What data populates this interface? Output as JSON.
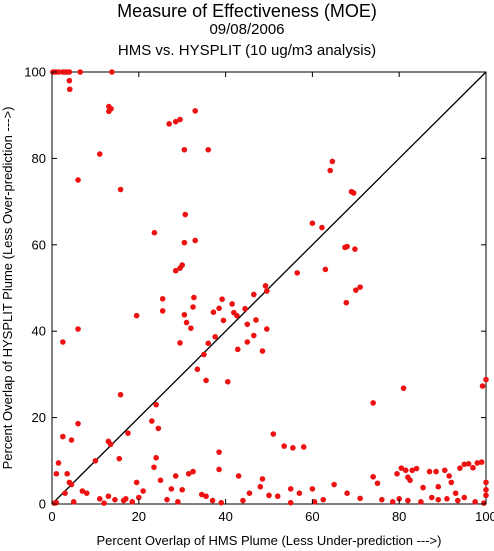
{
  "chart_data": {
    "type": "scatter",
    "title": "Measure of Effectiveness (MOE)",
    "date": "09/08/2006",
    "subtitle": "HMS vs. HYSPLIT  (10 ug/m3 analysis)",
    "xlabel": "Percent Overlap of HMS Plume (Less Under-prediction --->)",
    "ylabel": "Percent Overlap of HYSPLIT Plume (Less Over-prediction --->)",
    "xlim": [
      0,
      100
    ],
    "ylim": [
      0,
      100
    ],
    "xticks": [
      "0",
      "20",
      "40",
      "60",
      "80",
      "100"
    ],
    "yticks": [
      "0",
      "20",
      "40",
      "60",
      "80",
      "100"
    ],
    "grid": false,
    "legend": "none",
    "reference_line": {
      "x": [
        0,
        100
      ],
      "y": [
        0,
        100
      ]
    },
    "point_color": "#ee1111",
    "series": [
      {
        "points": [
          [
            0.2,
            100
          ],
          [
            0.6,
            100
          ],
          [
            1.0,
            100
          ],
          [
            1.5,
            100
          ],
          [
            2.5,
            100
          ],
          [
            3.0,
            100
          ],
          [
            3.5,
            100
          ],
          [
            4.0,
            100
          ],
          [
            6.5,
            100
          ],
          [
            13.8,
            100
          ],
          [
            4.0,
            98
          ],
          [
            4.1,
            96
          ],
          [
            13.1,
            92
          ],
          [
            13.1,
            90.9
          ],
          [
            13.6,
            91.5
          ],
          [
            33.0,
            91
          ],
          [
            27.0,
            88
          ],
          [
            28.5,
            88.5
          ],
          [
            29.5,
            89
          ],
          [
            30.5,
            82
          ],
          [
            36.0,
            82
          ],
          [
            11.0,
            81
          ],
          [
            64.6,
            79.3
          ],
          [
            64.1,
            77.2
          ],
          [
            6.0,
            75
          ],
          [
            15.8,
            72.8
          ],
          [
            69.0,
            72.3
          ],
          [
            69.5,
            72
          ],
          [
            30.7,
            67
          ],
          [
            60.0,
            65
          ],
          [
            62.2,
            64
          ],
          [
            23.6,
            62.8
          ],
          [
            30.5,
            60.5
          ],
          [
            33.0,
            61
          ],
          [
            68.0,
            59.6
          ],
          [
            67.5,
            59.4
          ],
          [
            69.8,
            59.0
          ],
          [
            29.5,
            54.6
          ],
          [
            30.0,
            55.3
          ],
          [
            28.5,
            54
          ],
          [
            56.5,
            53.5
          ],
          [
            63.0,
            54.3
          ],
          [
            70.0,
            49.5
          ],
          [
            71.0,
            50.2
          ],
          [
            25.5,
            47.5
          ],
          [
            32.7,
            47.8
          ],
          [
            39.2,
            47.4
          ],
          [
            46.5,
            48.5
          ],
          [
            49.2,
            50.5
          ],
          [
            49.5,
            49.3
          ],
          [
            67.8,
            46.6
          ],
          [
            25.5,
            44.7
          ],
          [
            19.5,
            43.6
          ],
          [
            30.5,
            43.8
          ],
          [
            32.5,
            45.6
          ],
          [
            37.2,
            44.4
          ],
          [
            38.5,
            45.3
          ],
          [
            41.5,
            46.3
          ],
          [
            41.9,
            44.3
          ],
          [
            42.6,
            43.6
          ],
          [
            44.5,
            45.2
          ],
          [
            31.0,
            42
          ],
          [
            32.0,
            40.7
          ],
          [
            39.5,
            42.5
          ],
          [
            45.0,
            41.6
          ],
          [
            47.0,
            42.6
          ],
          [
            46.5,
            39
          ],
          [
            49.5,
            40.5
          ],
          [
            37.6,
            38.7
          ],
          [
            29.5,
            37.3
          ],
          [
            36.0,
            37.2
          ],
          [
            42.8,
            35.8
          ],
          [
            45.0,
            37.5
          ],
          [
            48.5,
            35.4
          ],
          [
            6.0,
            40.5
          ],
          [
            2.5,
            37.5
          ],
          [
            35.0,
            34.6
          ],
          [
            33.5,
            31.2
          ],
          [
            35.5,
            28.6
          ],
          [
            40.5,
            28.3
          ],
          [
            74.0,
            23.4
          ],
          [
            81.0,
            26.8
          ],
          [
            15.8,
            25.3
          ],
          [
            24.0,
            23.0
          ],
          [
            23.0,
            19.2
          ],
          [
            24.5,
            17.5
          ],
          [
            38.5,
            12.0
          ],
          [
            51.0,
            16.2
          ],
          [
            53.5,
            13.4
          ],
          [
            55.5,
            13.0
          ],
          [
            58.0,
            13.2
          ],
          [
            6.0,
            18.6
          ],
          [
            2.5,
            15.6
          ],
          [
            4.5,
            14.8
          ],
          [
            13.0,
            14.5
          ],
          [
            13.5,
            13.8
          ],
          [
            15.5,
            10.5
          ],
          [
            10.0,
            10.0
          ],
          [
            17.5,
            16.4
          ],
          [
            19.5,
            5.0
          ],
          [
            1.5,
            9.5
          ],
          [
            1.0,
            7.0
          ],
          [
            3.5,
            7.0
          ],
          [
            4.0,
            5.0
          ],
          [
            4.5,
            4.5
          ],
          [
            3.0,
            2.5
          ],
          [
            7.0,
            3.0
          ],
          [
            5.0,
            0.5
          ],
          [
            1.0,
            0.3
          ],
          [
            0.5,
            0.2
          ],
          [
            8.0,
            2.5
          ],
          [
            11.0,
            1.2
          ],
          [
            13.0,
            1.8
          ],
          [
            14.5,
            1.0
          ],
          [
            17.0,
            1.2
          ],
          [
            20.0,
            1.5
          ],
          [
            21.0,
            3.0
          ],
          [
            23.5,
            8.5
          ],
          [
            24.0,
            10.7
          ],
          [
            25.0,
            5.5
          ],
          [
            27.5,
            3.5
          ],
          [
            28.5,
            6.5
          ],
          [
            30.0,
            3.3
          ],
          [
            31.5,
            7.0
          ],
          [
            32.5,
            7.5
          ],
          [
            34.5,
            2.2
          ],
          [
            35.5,
            1.8
          ],
          [
            37.0,
            0.8
          ],
          [
            38.5,
            8.0
          ],
          [
            43.0,
            6.5
          ],
          [
            45.5,
            2.5
          ],
          [
            48.5,
            5.8
          ],
          [
            48.0,
            4.0
          ],
          [
            50.0,
            2.0
          ],
          [
            52.0,
            1.8
          ],
          [
            55.0,
            3.5
          ],
          [
            57.0,
            2.5
          ],
          [
            60.0,
            3.5
          ],
          [
            65.0,
            4.5
          ],
          [
            68.0,
            2.5
          ],
          [
            71.0,
            1.3
          ],
          [
            74.0,
            6.3
          ],
          [
            75.0,
            4.8
          ],
          [
            79.5,
            7.0
          ],
          [
            80.5,
            8.3
          ],
          [
            81.5,
            7.8
          ],
          [
            82.0,
            6.2
          ],
          [
            82.5,
            5.5
          ],
          [
            83.0,
            7.8
          ],
          [
            84.0,
            8.2
          ],
          [
            85.5,
            3.8
          ],
          [
            87.0,
            7.5
          ],
          [
            88.5,
            7.5
          ],
          [
            89.0,
            4.0
          ],
          [
            90.5,
            7.8
          ],
          [
            91.5,
            6.5
          ],
          [
            92.0,
            5.0
          ],
          [
            93.0,
            2.5
          ],
          [
            94.0,
            8.3
          ],
          [
            95.0,
            9.2
          ],
          [
            96.0,
            9.3
          ],
          [
            97.0,
            8.4
          ],
          [
            98.0,
            9.5
          ],
          [
            99.0,
            9.7
          ],
          [
            99.2,
            27.3
          ],
          [
            100,
            28.8
          ],
          [
            100,
            5.0
          ],
          [
            100,
            3.3
          ],
          [
            100,
            2.0
          ],
          [
            99.5,
            0.2
          ],
          [
            97.5,
            0.5
          ],
          [
            95.0,
            1.5
          ],
          [
            93.5,
            0.8
          ],
          [
            91.0,
            1.2
          ],
          [
            89.0,
            1.0
          ],
          [
            87.5,
            1.5
          ],
          [
            85.0,
            0.5
          ],
          [
            82.0,
            0.8
          ],
          [
            80.0,
            1.2
          ],
          [
            78.5,
            0.5
          ],
          [
            76.0,
            1.0
          ],
          [
            60.5,
            0.5
          ],
          [
            62.5,
            1.0
          ],
          [
            55.0,
            0.3
          ],
          [
            44.0,
            0.8
          ],
          [
            39.0,
            0.3
          ],
          [
            29.0,
            0.5
          ],
          [
            26.5,
            1.0
          ],
          [
            18.5,
            0.5
          ],
          [
            16.5,
            0.8
          ],
          [
            12.0,
            0.2
          ]
        ]
      }
    ]
  }
}
